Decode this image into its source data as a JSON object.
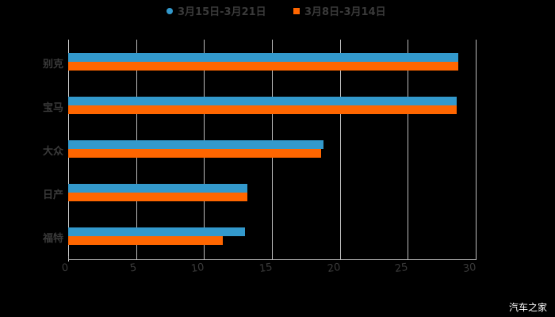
{
  "chart_data": {
    "type": "bar",
    "orientation": "horizontal",
    "title": "",
    "xlabel": "",
    "ylabel": "",
    "categories": [
      "别克",
      "宝马",
      "大众",
      "日产",
      "福特"
    ],
    "series": [
      {
        "name": "3月15日-3月21日",
        "color": "#3399cc",
        "values": [
          28.7,
          28.6,
          18.8,
          13.2,
          13.0
        ]
      },
      {
        "name": "3月8日-3月14日",
        "color": "#ff6600",
        "values": [
          28.7,
          28.6,
          18.6,
          13.2,
          11.4
        ]
      }
    ],
    "xlim": [
      0,
      30
    ],
    "xticks": [
      "0",
      "5",
      "10",
      "15",
      "20",
      "25",
      "30"
    ],
    "grid": true,
    "legend_position": "top"
  },
  "legend": {
    "series1_label": "3月15日-3月21日",
    "series2_label": "3月8日-3月14日"
  },
  "axis": {
    "ticks": [
      "0",
      "5",
      "10",
      "15",
      "20",
      "25",
      "30"
    ]
  },
  "categories": [
    "别克",
    "宝马",
    "大众",
    "日产",
    "福特"
  ],
  "watermark": "汽车之家"
}
